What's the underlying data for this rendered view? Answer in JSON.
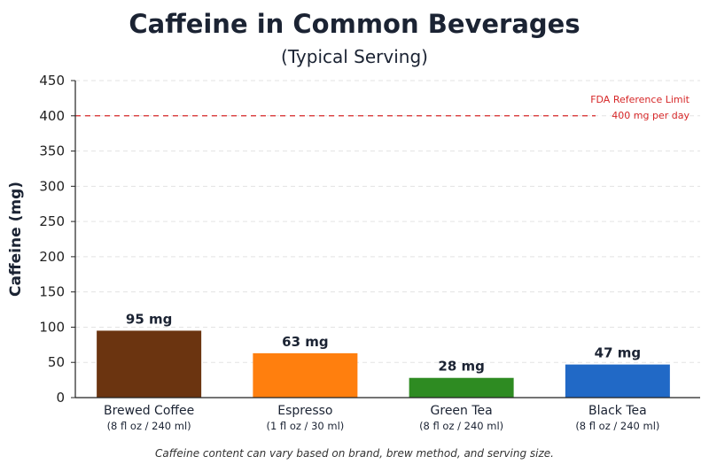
{
  "title": "Caffeine in Common Beverages",
  "subtitle": "(Typical Serving)",
  "footnote": "Caffeine content can vary based on brand, brew method, and serving size.",
  "colors": {
    "brewed_coffee": "#6b3410",
    "espresso": "#ff7f0e",
    "green_tea": "#2e8b22",
    "black_tea": "#2169c6",
    "reference": "#d62728",
    "grid": "#e3e3e3",
    "text": "#1b2333"
  },
  "chart_data": {
    "type": "bar",
    "title": "Caffeine in Common Beverages",
    "subtitle": "(Typical Serving)",
    "xlabel": "",
    "ylabel": "Caffeine (mg)",
    "ylim": [
      0,
      450
    ],
    "yticks": [
      0,
      50,
      100,
      150,
      200,
      250,
      300,
      350,
      400,
      450
    ],
    "grid": true,
    "categories": [
      "Brewed Coffee",
      "Espresso",
      "Green Tea",
      "Black Tea"
    ],
    "serving_sizes": [
      "(8 fl oz / 240 ml)",
      "(1 fl oz / 30 ml)",
      "(8 fl oz / 240 ml)",
      "(8 fl oz / 240 ml)"
    ],
    "values": [
      95,
      63,
      28,
      47
    ],
    "value_labels": [
      "95 mg",
      "63 mg",
      "28 mg",
      "47 mg"
    ],
    "bar_colors": [
      "#6b3410",
      "#ff7f0e",
      "#2e8b22",
      "#2169c6"
    ],
    "reference_line": {
      "value": 400,
      "label_line1": "FDA Reference Limit",
      "label_line2": "400 mg per day",
      "color": "#d62728",
      "style": "dashed"
    }
  }
}
